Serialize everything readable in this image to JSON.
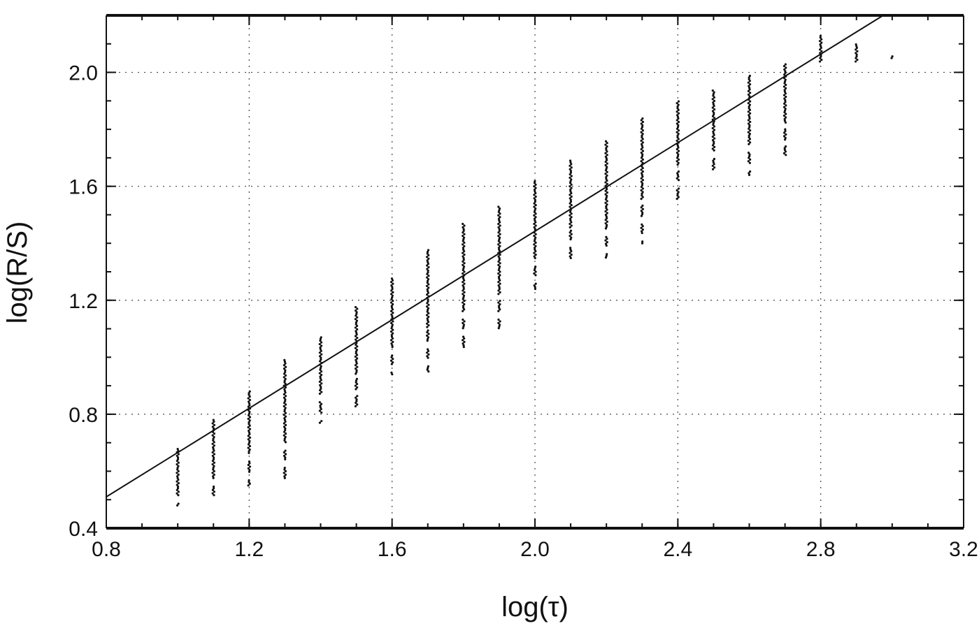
{
  "chart_data": {
    "type": "scatter",
    "title": "",
    "xlabel": "log(τ)",
    "ylabel": "log(R/S)",
    "xlim": [
      0.8,
      3.2
    ],
    "ylim": [
      0.4,
      2.2
    ],
    "xticks": [
      "0.8",
      "1.2",
      "1.6",
      "2.0",
      "2.4",
      "2.8",
      "3.2"
    ],
    "yticks": [
      "0.4",
      "0.8",
      "1.2",
      "1.6",
      "2.0"
    ],
    "grid": true,
    "series": [
      {
        "x": [
          1.0,
          1.1,
          1.2,
          1.3,
          1.4,
          1.5,
          1.6,
          1.7,
          1.8,
          1.9,
          2.0,
          2.1,
          2.2,
          2.3,
          2.4,
          2.5,
          2.6,
          2.7,
          2.8,
          2.9,
          3.0
        ],
        "ymin": [
          0.48,
          0.51,
          0.55,
          0.57,
          0.77,
          0.81,
          0.94,
          0.95,
          1.03,
          1.09,
          1.24,
          1.33,
          1.35,
          1.4,
          1.55,
          1.66,
          1.64,
          1.71,
          2.02,
          2.02,
          2.05
        ],
        "ymax": [
          0.68,
          0.78,
          0.88,
          0.99,
          1.07,
          1.18,
          1.28,
          1.38,
          1.47,
          1.53,
          1.62,
          1.69,
          1.76,
          1.84,
          1.9,
          1.94,
          1.99,
          2.03,
          2.13,
          2.1,
          2.06
        ]
      }
    ],
    "fit_line": {
      "x": [
        0.8,
        2.975
      ],
      "y": [
        0.51,
        2.2
      ]
    }
  }
}
